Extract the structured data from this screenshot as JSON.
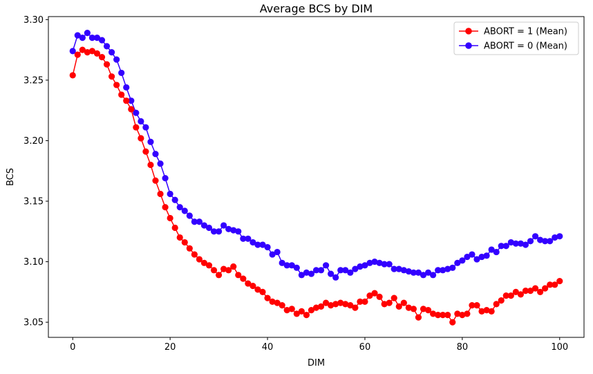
{
  "chart_data": {
    "type": "line",
    "title": "Average BCS by DIM",
    "xlabel": "DIM",
    "ylabel": "BCS",
    "xlim": [
      -5,
      105
    ],
    "ylim": [
      3.0375,
      3.3025
    ],
    "xticks": [
      0,
      20,
      40,
      60,
      80,
      100
    ],
    "yticks": [
      3.05,
      3.1,
      3.15,
      3.2,
      3.25,
      3.3
    ],
    "xtick_labels": [
      "0",
      "20",
      "40",
      "60",
      "80",
      "100"
    ],
    "ytick_labels": [
      "3.05",
      "3.10",
      "3.15",
      "3.20",
      "3.25",
      "3.30"
    ],
    "grid": false,
    "legend_position": "top-right",
    "x": [
      0,
      1,
      2,
      3,
      4,
      5,
      6,
      7,
      8,
      9,
      10,
      11,
      12,
      13,
      14,
      15,
      16,
      17,
      18,
      19,
      20,
      21,
      22,
      23,
      24,
      25,
      26,
      27,
      28,
      29,
      30,
      31,
      32,
      33,
      34,
      35,
      36,
      37,
      38,
      39,
      40,
      41,
      42,
      43,
      44,
      45,
      46,
      47,
      48,
      49,
      50,
      51,
      52,
      53,
      54,
      55,
      56,
      57,
      58,
      59,
      60,
      61,
      62,
      63,
      64,
      65,
      66,
      67,
      68,
      69,
      70,
      71,
      72,
      73,
      74,
      75,
      76,
      77,
      78,
      79,
      80,
      81,
      82,
      83,
      84,
      85,
      86,
      87,
      88,
      89,
      90,
      91,
      92,
      93,
      94,
      95,
      96,
      97,
      98,
      99,
      100
    ],
    "series": [
      {
        "name": "ABORT = 1 (Mean)",
        "color": "#ff0000",
        "values": [
          3.254,
          3.271,
          3.275,
          3.273,
          3.274,
          3.272,
          3.269,
          3.263,
          3.253,
          3.246,
          3.238,
          3.233,
          3.226,
          3.211,
          3.202,
          3.191,
          3.18,
          3.167,
          3.156,
          3.145,
          3.136,
          3.128,
          3.12,
          3.116,
          3.111,
          3.106,
          3.102,
          3.099,
          3.097,
          3.093,
          3.089,
          3.094,
          3.093,
          3.096,
          3.089,
          3.086,
          3.082,
          3.08,
          3.077,
          3.075,
          3.07,
          3.067,
          3.066,
          3.064,
          3.06,
          3.061,
          3.057,
          3.059,
          3.056,
          3.06,
          3.062,
          3.063,
          3.066,
          3.064,
          3.065,
          3.066,
          3.065,
          3.064,
          3.062,
          3.067,
          3.067,
          3.072,
          3.074,
          3.071,
          3.065,
          3.066,
          3.07,
          3.063,
          3.066,
          3.062,
          3.061,
          3.054,
          3.061,
          3.06,
          3.057,
          3.056,
          3.056,
          3.056,
          3.05,
          3.057,
          3.056,
          3.057,
          3.064,
          3.064,
          3.059,
          3.06,
          3.059,
          3.065,
          3.068,
          3.072,
          3.072,
          3.075,
          3.073,
          3.076,
          3.076,
          3.078,
          3.075,
          3.078,
          3.081,
          3.081,
          3.084
        ]
      },
      {
        "name": "ABORT = 0 (Mean)",
        "color": "#3300ff",
        "values": [
          3.274,
          3.287,
          3.285,
          3.289,
          3.285,
          3.285,
          3.283,
          3.278,
          3.273,
          3.267,
          3.256,
          3.244,
          3.233,
          3.223,
          3.216,
          3.211,
          3.199,
          3.189,
          3.181,
          3.169,
          3.156,
          3.151,
          3.145,
          3.142,
          3.138,
          3.133,
          3.133,
          3.13,
          3.128,
          3.125,
          3.125,
          3.13,
          3.127,
          3.126,
          3.125,
          3.119,
          3.119,
          3.116,
          3.114,
          3.114,
          3.112,
          3.106,
          3.108,
          3.099,
          3.097,
          3.097,
          3.095,
          3.089,
          3.091,
          3.09,
          3.093,
          3.093,
          3.097,
          3.09,
          3.087,
          3.093,
          3.093,
          3.091,
          3.094,
          3.096,
          3.097,
          3.099,
          3.1,
          3.099,
          3.098,
          3.098,
          3.094,
          3.094,
          3.093,
          3.092,
          3.091,
          3.091,
          3.089,
          3.091,
          3.089,
          3.093,
          3.093,
          3.094,
          3.095,
          3.099,
          3.101,
          3.104,
          3.106,
          3.102,
          3.104,
          3.105,
          3.11,
          3.108,
          3.113,
          3.113,
          3.116,
          3.115,
          3.115,
          3.114,
          3.117,
          3.121,
          3.118,
          3.117,
          3.117,
          3.12,
          3.121
        ]
      }
    ]
  }
}
